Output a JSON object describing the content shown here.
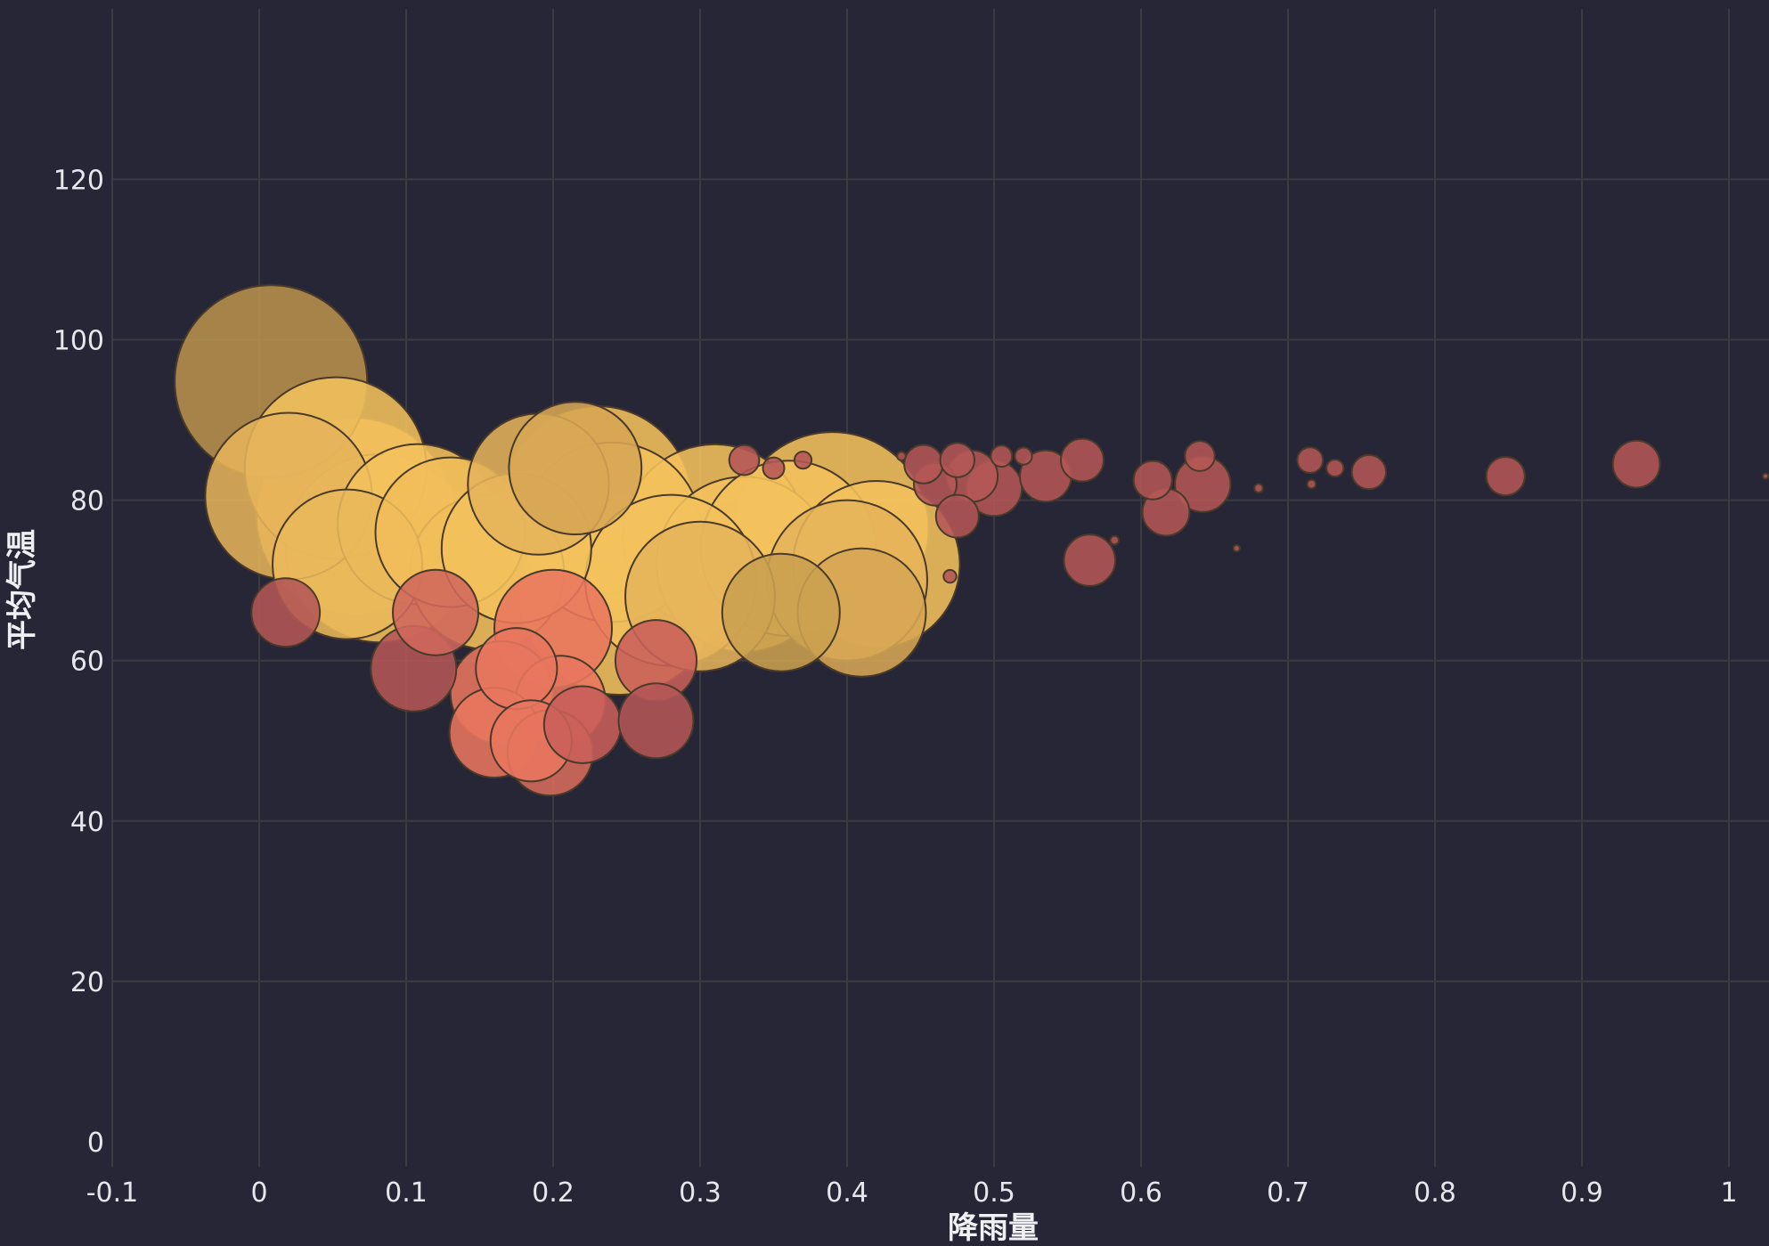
{
  "chart_data": {
    "type": "scatter",
    "subtype": "bubble",
    "xlabel": "降雨量",
    "ylabel": "平均气温",
    "xlim": [
      -0.1,
      1.0
    ],
    "ylim": [
      0,
      120
    ],
    "x_ticks": [
      -0.1,
      0,
      0.1,
      0.2,
      0.3,
      0.4,
      0.5,
      0.6,
      0.7,
      0.8,
      0.9,
      1
    ],
    "x_tick_labels": [
      "-0.1",
      "0",
      "0.1",
      "0.2",
      "0.3",
      "0.4",
      "0.5",
      "0.6",
      "0.7",
      "0.8",
      "0.9",
      "1"
    ],
    "y_ticks": [
      0,
      20,
      40,
      60,
      80,
      100,
      120
    ],
    "y_tick_labels": [
      "0",
      "20",
      "40",
      "60",
      "80",
      "100",
      "120"
    ],
    "grid": true,
    "legend": "none",
    "colors": {
      "background": "#262637",
      "grid": "#3b3b42",
      "ticks": "#e6e6ec",
      "bubble_small": "#b45656",
      "bubble_mid": "#e8765f",
      "bubble_large": "#f3c25c",
      "bubble_outlier": "#b8924c",
      "bubble_stroke": "#4a3a2a"
    },
    "size_note": "relative bubble size",
    "points": [
      {
        "x": 0.008,
        "y": 94.8,
        "size": 90,
        "color": "#b8924c"
      },
      {
        "x": 0.018,
        "y": 66.0,
        "size": 32,
        "color": "#b45656"
      },
      {
        "x": 0.052,
        "y": 84.0,
        "size": 85,
        "color": "#f3c25c"
      },
      {
        "x": 0.02,
        "y": 80.5,
        "size": 78,
        "color": "#e5b35a"
      },
      {
        "x": 0.065,
        "y": 78.0,
        "size": 92,
        "color": "#f3c25c"
      },
      {
        "x": 0.082,
        "y": 74.0,
        "size": 88,
        "color": "#f3c25c"
      },
      {
        "x": 0.06,
        "y": 72.0,
        "size": 70,
        "color": "#e8b85a"
      },
      {
        "x": 0.108,
        "y": 77.0,
        "size": 75,
        "color": "#f3c25c"
      },
      {
        "x": 0.13,
        "y": 76.0,
        "size": 70,
        "color": "#f0bd5a"
      },
      {
        "x": 0.105,
        "y": 59.0,
        "size": 40,
        "color": "#b45656"
      },
      {
        "x": 0.12,
        "y": 66.0,
        "size": 40,
        "color": "#d0685c"
      },
      {
        "x": 0.155,
        "y": 71.0,
        "size": 72,
        "color": "#f3c25c"
      },
      {
        "x": 0.175,
        "y": 74.0,
        "size": 70,
        "color": "#f3c25c"
      },
      {
        "x": 0.19,
        "y": 82.0,
        "size": 66,
        "color": "#e5b35a"
      },
      {
        "x": 0.215,
        "y": 84.0,
        "size": 62,
        "color": "#d6a654"
      },
      {
        "x": 0.23,
        "y": 80.0,
        "size": 88,
        "color": "#f3c25c"
      },
      {
        "x": 0.24,
        "y": 76.0,
        "size": 84,
        "color": "#f3c25c"
      },
      {
        "x": 0.245,
        "y": 68.0,
        "size": 92,
        "color": "#f3c25c"
      },
      {
        "x": 0.2,
        "y": 64.0,
        "size": 55,
        "color": "#e8765f"
      },
      {
        "x": 0.165,
        "y": 56.0,
        "size": 48,
        "color": "#e8765f"
      },
      {
        "x": 0.175,
        "y": 59.0,
        "size": 38,
        "color": "#e8765f"
      },
      {
        "x": 0.205,
        "y": 55.0,
        "size": 42,
        "color": "#e8765f"
      },
      {
        "x": 0.22,
        "y": 52.0,
        "size": 36,
        "color": "#c9605a"
      },
      {
        "x": 0.16,
        "y": 51.0,
        "size": 42,
        "color": "#e8765f"
      },
      {
        "x": 0.185,
        "y": 50.0,
        "size": 38,
        "color": "#e8765f"
      },
      {
        "x": 0.198,
        "y": 48.5,
        "size": 40,
        "color": "#d86c5c"
      },
      {
        "x": 0.27,
        "y": 52.5,
        "size": 35,
        "color": "#b45656"
      },
      {
        "x": 0.27,
        "y": 60.0,
        "size": 38,
        "color": "#c9605a"
      },
      {
        "x": 0.28,
        "y": 70.0,
        "size": 80,
        "color": "#f3c25c"
      },
      {
        "x": 0.31,
        "y": 75.5,
        "size": 86,
        "color": "#f3c25c"
      },
      {
        "x": 0.3,
        "y": 68.0,
        "size": 70,
        "color": "#e5b35a"
      },
      {
        "x": 0.33,
        "y": 72.0,
        "size": 82,
        "color": "#f3c25c"
      },
      {
        "x": 0.355,
        "y": 66.0,
        "size": 55,
        "color": "#c9a050"
      },
      {
        "x": 0.36,
        "y": 74.0,
        "size": 82,
        "color": "#f3c25c"
      },
      {
        "x": 0.39,
        "y": 76.5,
        "size": 90,
        "color": "#f3c25c"
      },
      {
        "x": 0.4,
        "y": 70.0,
        "size": 75,
        "color": "#e5b35a"
      },
      {
        "x": 0.42,
        "y": 72.0,
        "size": 78,
        "color": "#f3c25c"
      },
      {
        "x": 0.41,
        "y": 66.0,
        "size": 60,
        "color": "#d6a654"
      },
      {
        "x": 0.33,
        "y": 85.0,
        "size": 14,
        "color": "#b45656"
      },
      {
        "x": 0.35,
        "y": 84.0,
        "size": 10,
        "color": "#b45656"
      },
      {
        "x": 0.37,
        "y": 85.0,
        "size": 8,
        "color": "#b45656"
      },
      {
        "x": 0.437,
        "y": 85.5,
        "size": 4,
        "color": "#b45656"
      },
      {
        "x": 0.452,
        "y": 84.5,
        "size": 18,
        "color": "#b45656"
      },
      {
        "x": 0.46,
        "y": 82.0,
        "size": 20,
        "color": "#b45656"
      },
      {
        "x": 0.475,
        "y": 85.0,
        "size": 16,
        "color": "#b45656"
      },
      {
        "x": 0.485,
        "y": 83.0,
        "size": 24,
        "color": "#b45656"
      },
      {
        "x": 0.5,
        "y": 81.5,
        "size": 26,
        "color": "#b45656"
      },
      {
        "x": 0.505,
        "y": 85.5,
        "size": 10,
        "color": "#b45656"
      },
      {
        "x": 0.475,
        "y": 78.0,
        "size": 20,
        "color": "#b45656"
      },
      {
        "x": 0.52,
        "y": 85.5,
        "size": 8,
        "color": "#b45656"
      },
      {
        "x": 0.535,
        "y": 83.0,
        "size": 24,
        "color": "#b45656"
      },
      {
        "x": 0.56,
        "y": 85.0,
        "size": 20,
        "color": "#b45656"
      },
      {
        "x": 0.565,
        "y": 72.5,
        "size": 24,
        "color": "#b45656"
      },
      {
        "x": 0.582,
        "y": 75.0,
        "size": 4,
        "color": "#b45656"
      },
      {
        "x": 0.608,
        "y": 82.5,
        "size": 18,
        "color": "#b45656"
      },
      {
        "x": 0.617,
        "y": 78.5,
        "size": 22,
        "color": "#b45656"
      },
      {
        "x": 0.64,
        "y": 85.5,
        "size": 14,
        "color": "#b45656"
      },
      {
        "x": 0.642,
        "y": 82.0,
        "size": 26,
        "color": "#b45656"
      },
      {
        "x": 0.665,
        "y": 74.0,
        "size": 3,
        "color": "#b45656"
      },
      {
        "x": 0.68,
        "y": 81.5,
        "size": 4,
        "color": "#b45656"
      },
      {
        "x": 0.715,
        "y": 85.0,
        "size": 12,
        "color": "#b45656"
      },
      {
        "x": 0.716,
        "y": 82.0,
        "size": 4,
        "color": "#b45656"
      },
      {
        "x": 0.732,
        "y": 84.0,
        "size": 8,
        "color": "#b45656"
      },
      {
        "x": 0.755,
        "y": 83.5,
        "size": 16,
        "color": "#b45656"
      },
      {
        "x": 0.848,
        "y": 83.0,
        "size": 18,
        "color": "#b45656"
      },
      {
        "x": 0.937,
        "y": 84.5,
        "size": 22,
        "color": "#b45656"
      },
      {
        "x": 1.025,
        "y": 83.0,
        "size": 2,
        "color": "#b45656"
      },
      {
        "x": 0.47,
        "y": 70.5,
        "size": 6,
        "color": "#b45656"
      }
    ]
  }
}
